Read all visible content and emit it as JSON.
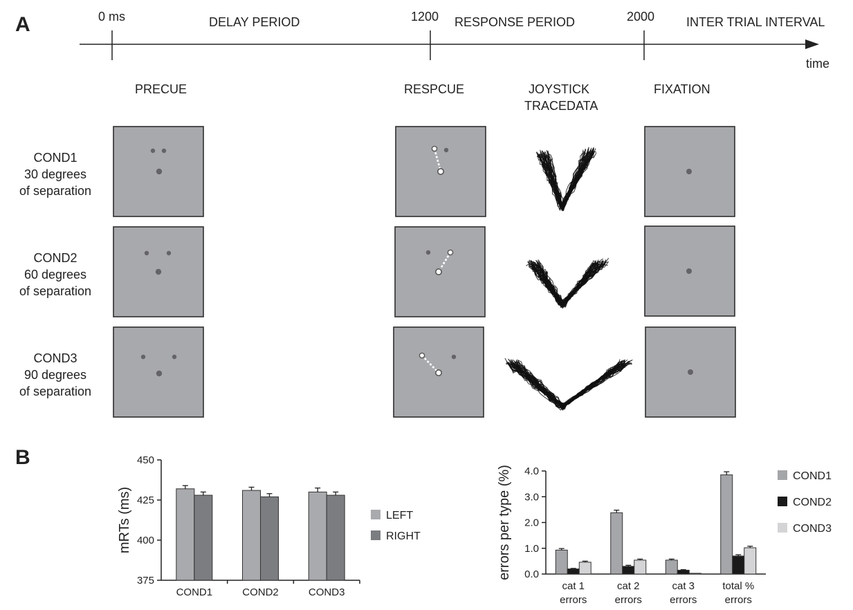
{
  "panels": {
    "a": "A",
    "b": "B"
  },
  "timeline": {
    "marks": [
      "0 ms",
      "1200",
      "2000"
    ],
    "periods": [
      "DELAY PERIOD",
      "RESPONSE PERIOD",
      "INTER TRIAL INTERVAL"
    ],
    "axis_label": "time"
  },
  "columns": {
    "precue": "PRECUE",
    "respcue": "RESPCUE",
    "joystick": [
      "JOYSTICK",
      "TRACEDATA"
    ],
    "fixation": "FIXATION"
  },
  "conditions": [
    {
      "name": "COND1",
      "line2": "30 degrees",
      "line3": "of separation",
      "separation_deg": 30
    },
    {
      "name": "COND2",
      "line2": "60 degrees",
      "line3": "of separation",
      "separation_deg": 60
    },
    {
      "name": "COND3",
      "line2": "90 degrees",
      "line3": "of separation",
      "separation_deg": 90
    }
  ],
  "colors": {
    "box": "#a8a9ad",
    "dot": "#646468",
    "left": "#a9aaad",
    "right": "#7c7d81",
    "cond1": "#a5a6a9",
    "cond2": "#1a1a1a",
    "cond3": "#d4d4d6"
  },
  "chart_data": [
    {
      "type": "bar",
      "ylabel": "mRTs (ms)",
      "categories": [
        "COND1",
        "COND2",
        "COND3"
      ],
      "ylim": [
        375,
        450
      ],
      "yticks": [
        "375",
        "400",
        "425",
        "450"
      ],
      "series": [
        {
          "name": "LEFT",
          "values": [
            432,
            431,
            430
          ],
          "errors": [
            2,
            2,
            2.5
          ]
        },
        {
          "name": "RIGHT",
          "values": [
            428,
            427,
            428
          ],
          "errors": [
            2,
            2,
            2
          ]
        }
      ],
      "legend": "right"
    },
    {
      "type": "bar",
      "ylabel": "errors per type (%)",
      "categories": [
        [
          "cat 1",
          "errors"
        ],
        [
          "cat 2",
          "errors"
        ],
        [
          "cat 3",
          "errors"
        ],
        [
          "total %",
          "errors"
        ]
      ],
      "ylim": [
        0,
        4
      ],
      "yticks": [
        "0.0",
        "1.0",
        "2.0",
        "3.0",
        "4.0"
      ],
      "series": [
        {
          "name": "COND1",
          "values": [
            0.93,
            2.38,
            0.54,
            3.85
          ],
          "errors": [
            0.06,
            0.1,
            0.04,
            0.12
          ]
        },
        {
          "name": "COND2",
          "values": [
            0.2,
            0.3,
            0.15,
            0.7
          ],
          "errors": [
            0.02,
            0.04,
            0.02,
            0.05
          ]
        },
        {
          "name": "COND3",
          "values": [
            0.46,
            0.54,
            0.03,
            1.02
          ],
          "errors": [
            0.04,
            0.04,
            0.0,
            0.06
          ]
        }
      ],
      "legend": "right"
    }
  ]
}
